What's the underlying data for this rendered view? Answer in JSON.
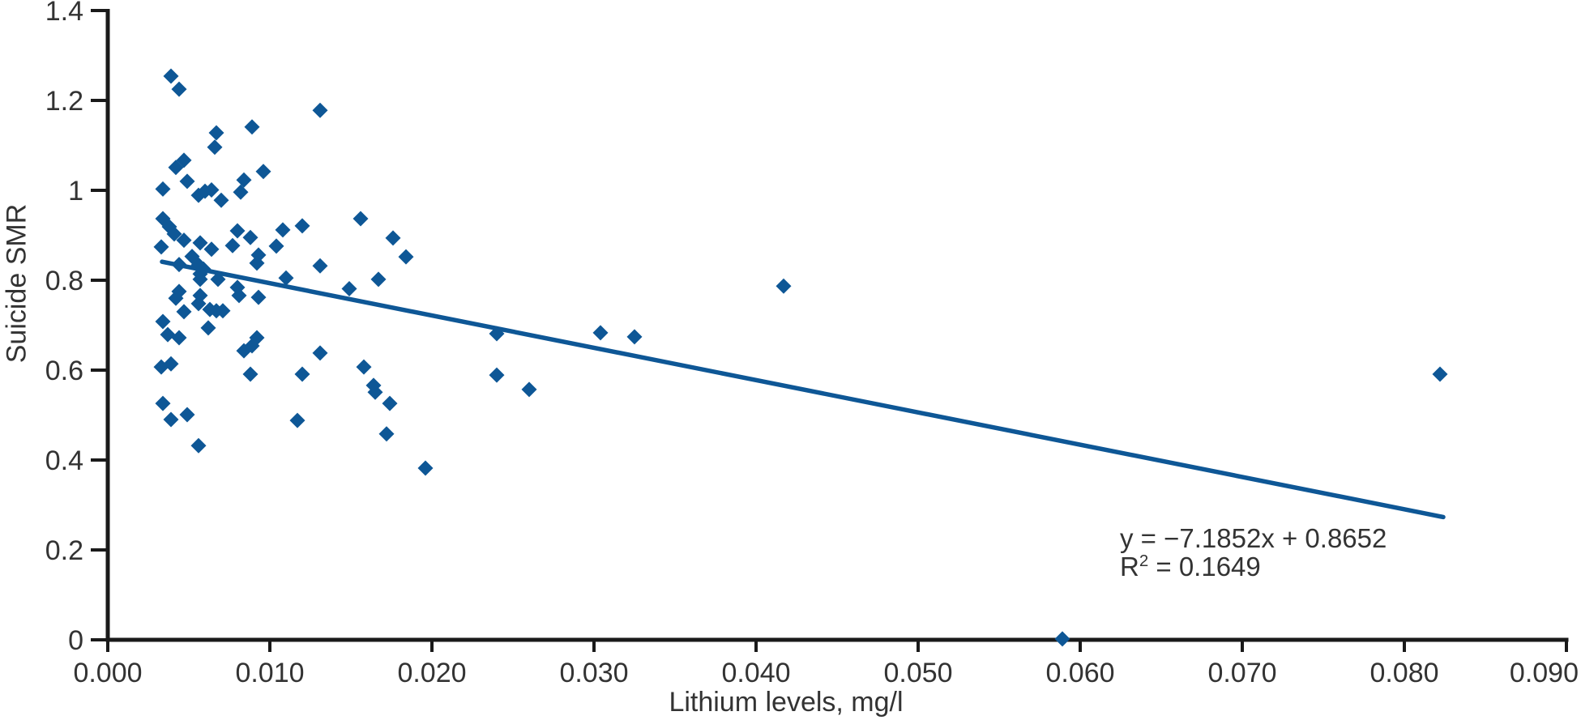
{
  "figure": {
    "x_axis_title": "Lithium levels, mg/l",
    "y_axis_title": "Suicide SMR",
    "annotation": {
      "equation_line": "y = −7.1852x + 0.8652",
      "r2_base": "R",
      "r2_sup": "2",
      "r2_rest": " = 0.1649"
    },
    "colors": {
      "marker": "#0e5796",
      "trendline": "#0e5796",
      "axis": "#1a1a1a",
      "text": "#333333"
    }
  },
  "chart_data": {
    "type": "scatter",
    "title": "",
    "xlabel": "Lithium levels, mg/l",
    "ylabel": "Suicide SMR",
    "xlim": [
      0,
      0.09
    ],
    "ylim": [
      0,
      1.4
    ],
    "grid": false,
    "legend": "none",
    "x_tick_values": [
      0,
      0.01,
      0.02,
      0.03,
      0.04,
      0.05,
      0.06,
      0.07,
      0.08,
      0.09
    ],
    "x_tick_labels": [
      "0.000",
      "0.010",
      "0.020",
      "0.030",
      "0.040",
      "0.050",
      "0.060",
      "0.070",
      "0.080",
      "0.090"
    ],
    "y_tick_values": [
      0,
      0.2,
      0.4,
      0.6,
      0.8,
      1.0,
      1.2,
      1.4
    ],
    "y_tick_labels": [
      "0",
      "0.2",
      "0.4",
      "0.6",
      "0.8",
      "1",
      "1.2",
      "1.4"
    ],
    "points": [
      [
        0.0039,
        1.254
      ],
      [
        0.0044,
        1.225
      ],
      [
        0.0131,
        1.178
      ],
      [
        0.0089,
        1.141
      ],
      [
        0.0067,
        1.128
      ],
      [
        0.0066,
        1.096
      ],
      [
        0.0047,
        1.067
      ],
      [
        0.0042,
        1.051
      ],
      [
        0.0096,
        1.042
      ],
      [
        0.0049,
        1.02
      ],
      [
        0.0084,
        1.023
      ],
      [
        0.0034,
        1.003
      ],
      [
        0.0056,
        0.989
      ],
      [
        0.006,
        0.998
      ],
      [
        0.0064,
        1.001
      ],
      [
        0.007,
        0.978
      ],
      [
        0.0082,
        0.996
      ],
      [
        0.0034,
        0.937
      ],
      [
        0.0038,
        0.919
      ],
      [
        0.0041,
        0.903
      ],
      [
        0.0047,
        0.889
      ],
      [
        0.0033,
        0.874
      ],
      [
        0.0057,
        0.883
      ],
      [
        0.0064,
        0.869
      ],
      [
        0.0077,
        0.877
      ],
      [
        0.008,
        0.91
      ],
      [
        0.0088,
        0.895
      ],
      [
        0.0108,
        0.912
      ],
      [
        0.012,
        0.921
      ],
      [
        0.0156,
        0.937
      ],
      [
        0.0104,
        0.876
      ],
      [
        0.0176,
        0.894
      ],
      [
        0.0093,
        0.856
      ],
      [
        0.0092,
        0.838
      ],
      [
        0.0131,
        0.832
      ],
      [
        0.0052,
        0.853
      ],
      [
        0.0044,
        0.835
      ],
      [
        0.0056,
        0.834
      ],
      [
        0.0059,
        0.825
      ],
      [
        0.0057,
        0.814
      ],
      [
        0.011,
        0.805
      ],
      [
        0.0184,
        0.852
      ],
      [
        0.0057,
        0.802
      ],
      [
        0.0068,
        0.802
      ],
      [
        0.0167,
        0.802
      ],
      [
        0.0044,
        0.775
      ],
      [
        0.0042,
        0.76
      ],
      [
        0.0057,
        0.766
      ],
      [
        0.0056,
        0.748
      ],
      [
        0.008,
        0.784
      ],
      [
        0.0081,
        0.766
      ],
      [
        0.0093,
        0.762
      ],
      [
        0.0149,
        0.781
      ],
      [
        0.0047,
        0.73
      ],
      [
        0.0063,
        0.735
      ],
      [
        0.0067,
        0.732
      ],
      [
        0.0071,
        0.732
      ],
      [
        0.0034,
        0.708
      ],
      [
        0.0417,
        0.787
      ],
      [
        0.0062,
        0.694
      ],
      [
        0.0037,
        0.679
      ],
      [
        0.0044,
        0.672
      ],
      [
        0.0092,
        0.672
      ],
      [
        0.0084,
        0.643
      ],
      [
        0.0089,
        0.654
      ],
      [
        0.0131,
        0.638
      ],
      [
        0.024,
        0.681
      ],
      [
        0.0304,
        0.683
      ],
      [
        0.0325,
        0.674
      ],
      [
        0.0033,
        0.607
      ],
      [
        0.0039,
        0.614
      ],
      [
        0.0088,
        0.591
      ],
      [
        0.012,
        0.591
      ],
      [
        0.0158,
        0.607
      ],
      [
        0.024,
        0.589
      ],
      [
        0.0822,
        0.591
      ],
      [
        0.0164,
        0.566
      ],
      [
        0.0165,
        0.551
      ],
      [
        0.0174,
        0.526
      ],
      [
        0.026,
        0.557
      ],
      [
        0.0034,
        0.526
      ],
      [
        0.0049,
        0.501
      ],
      [
        0.0039,
        0.49
      ],
      [
        0.0117,
        0.488
      ],
      [
        0.0056,
        0.432
      ],
      [
        0.0172,
        0.458
      ],
      [
        0.0196,
        0.382
      ],
      [
        0.0589,
        0.002
      ]
    ],
    "trendline": {
      "slope": -7.1852,
      "intercept": 0.8652,
      "x_start": 0.00335,
      "x_end": 0.0824,
      "equation": "y = −7.1852x + 0.8652",
      "r_squared": "R² = 0.1649"
    }
  }
}
